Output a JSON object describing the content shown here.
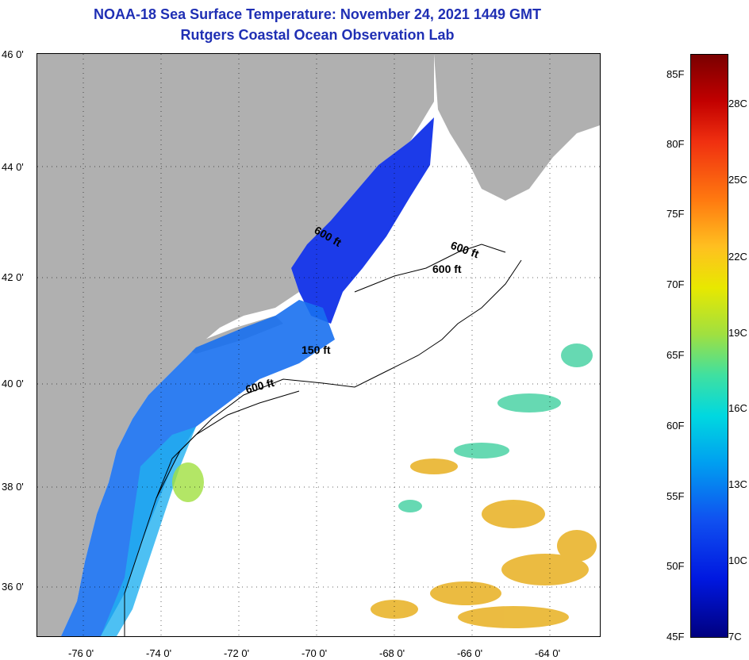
{
  "header": {
    "title": "NOAA-18 Sea Surface Temperature:  November 24, 2021 1449 GMT",
    "subtitle": "Rutgers Coastal Ocean Observation Lab"
  },
  "map": {
    "lat_labels": [
      "46 0'",
      "44 0'",
      "42 0'",
      "40 0'",
      "38 0'",
      "36 0'"
    ],
    "lon_labels": [
      "-76 0'",
      "-74 0'",
      "-72 0'",
      "-70 0'",
      "-68 0'",
      "-66 0'",
      "-64 0'"
    ],
    "contour_labels": [
      "600 ft",
      "600 ft",
      "600 ft",
      "150 ft",
      "600 ft"
    ]
  },
  "colorbar": {
    "fahrenheit_labels": [
      "85F",
      "80F",
      "75F",
      "70F",
      "65F",
      "60F",
      "55F",
      "50F",
      "45F"
    ],
    "celsius_labels": [
      "28C",
      "25C",
      "22C",
      "19C",
      "16C",
      "13C",
      "10C",
      "7C"
    ]
  },
  "colors": {
    "title": "#1f2fb4",
    "land": "#b0b0b0",
    "cold": "#1030e8",
    "cool": "#18a0f0",
    "mid": "#40d0d0",
    "warm": "#e8b020"
  }
}
